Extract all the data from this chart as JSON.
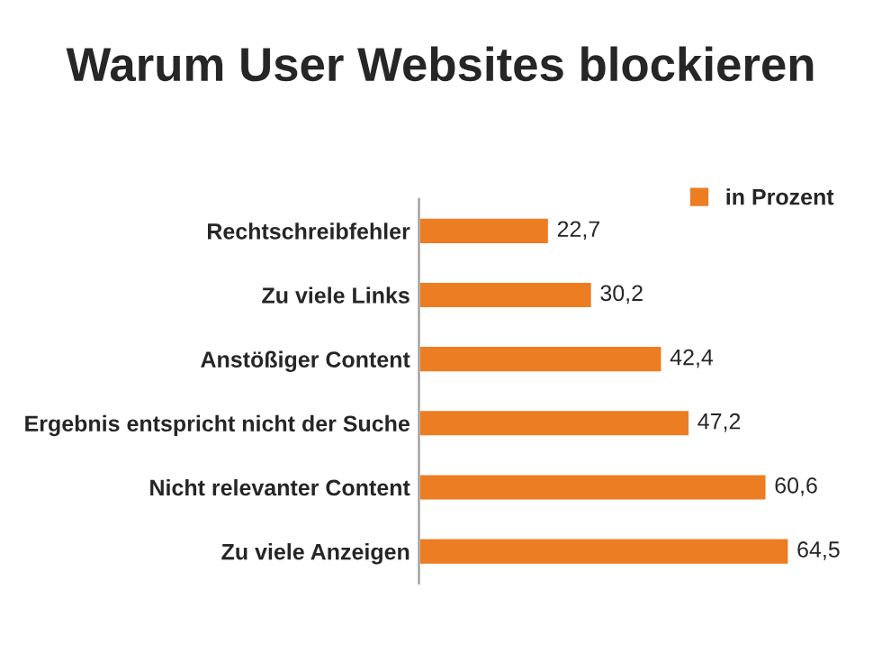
{
  "chart_data": {
    "type": "bar",
    "orientation": "horizontal",
    "title": "Warum User Websites blockieren",
    "categories": [
      "Rechtschreibfehler",
      "Zu viele Links",
      "Anstößiger Content",
      "Ergebnis entspricht nicht der Suche",
      "Nicht relevanter Content",
      "Zu viele Anzeigen"
    ],
    "series": [
      {
        "name": "in Prozent",
        "color": "#ec7d22",
        "values": [
          22.7,
          30.2,
          42.4,
          47.2,
          60.6,
          64.5
        ],
        "value_labels": [
          "22,7",
          "30,2",
          "42,4",
          "47,2",
          "60,6",
          "64,5"
        ]
      }
    ],
    "legend": "top right",
    "grid": false
  }
}
